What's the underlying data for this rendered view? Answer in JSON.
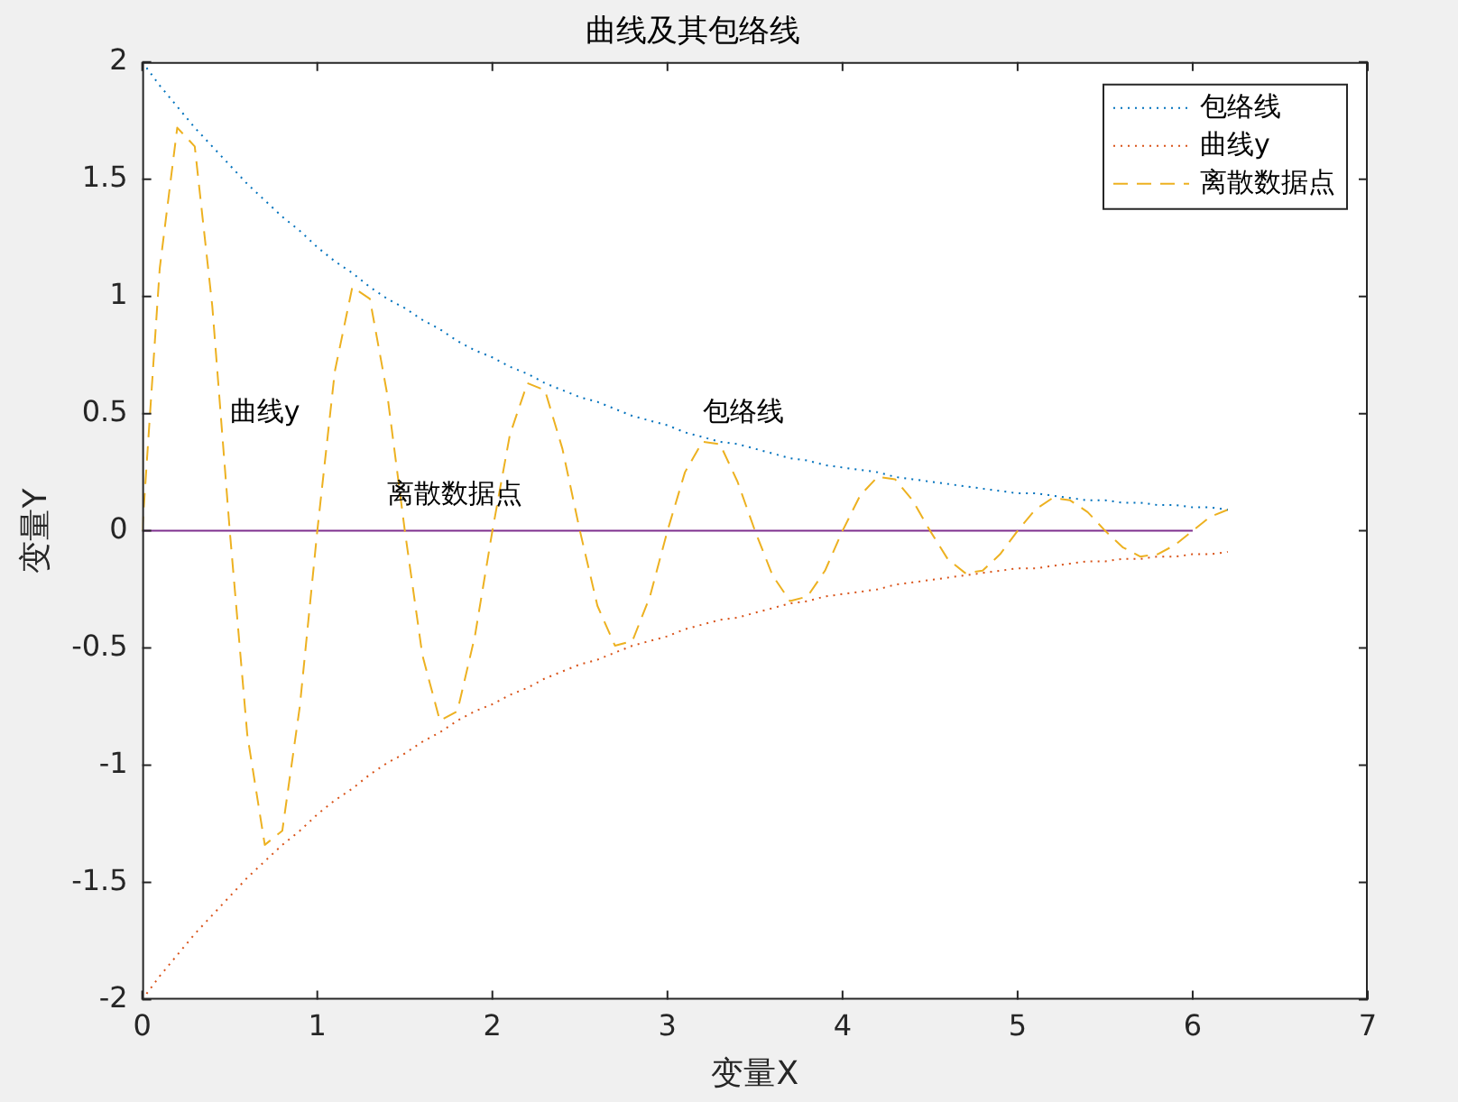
{
  "chart_data": {
    "type": "line",
    "title": "曲线及其包络线",
    "xlabel": "变量X",
    "ylabel": "变量Y",
    "x": [
      0,
      0.1,
      0.2,
      0.3,
      0.4,
      0.5,
      0.6,
      0.7,
      0.8,
      0.9,
      1,
      1.1,
      1.2,
      1.3,
      1.4,
      1.5,
      1.6,
      1.7,
      1.8,
      1.9,
      2,
      2.1,
      2.2,
      2.3,
      2.4,
      2.5,
      2.6,
      2.7,
      2.8,
      2.9,
      3,
      3.1,
      3.2,
      3.3,
      3.4,
      3.5,
      3.6,
      3.7,
      3.8,
      3.9,
      4,
      4.1,
      4.2,
      4.3,
      4.4,
      4.5,
      4.6,
      4.7,
      4.8,
      4.9,
      5,
      5.1,
      5.2,
      5.3,
      5.4,
      5.5,
      5.6,
      5.7,
      5.8,
      5.9,
      6,
      6.1,
      6.2
    ],
    "series": [
      {
        "name": "包络线",
        "color": "#0072bd",
        "line_style": "dotted",
        "values": [
          2,
          1.9,
          1.81,
          1.72,
          1.64,
          1.56,
          1.48,
          1.41,
          1.34,
          1.28,
          1.21,
          1.15,
          1.1,
          1.04,
          0.99,
          0.95,
          0.9,
          0.86,
          0.81,
          0.77,
          0.74,
          0.7,
          0.67,
          0.63,
          0.6,
          0.57,
          0.55,
          0.52,
          0.49,
          0.47,
          0.45,
          0.42,
          0.4,
          0.38,
          0.37,
          0.35,
          0.33,
          0.31,
          0.3,
          0.28,
          0.27,
          0.26,
          0.25,
          0.23,
          0.22,
          0.21,
          0.2,
          0.19,
          0.18,
          0.17,
          0.16,
          0.16,
          0.15,
          0.14,
          0.13,
          0.13,
          0.12,
          0.12,
          0.11,
          0.11,
          0.1,
          0.1,
          0.09
        ]
      },
      {
        "name": "曲线y",
        "color": "#d95319",
        "line_style": "dotted",
        "values": [
          -2,
          -1.9,
          -1.81,
          -1.72,
          -1.64,
          -1.56,
          -1.48,
          -1.41,
          -1.34,
          -1.28,
          -1.21,
          -1.15,
          -1.1,
          -1.04,
          -0.99,
          -0.95,
          -0.9,
          -0.86,
          -0.81,
          -0.77,
          -0.74,
          -0.7,
          -0.67,
          -0.63,
          -0.6,
          -0.57,
          -0.55,
          -0.52,
          -0.49,
          -0.47,
          -0.45,
          -0.42,
          -0.4,
          -0.38,
          -0.37,
          -0.35,
          -0.33,
          -0.31,
          -0.3,
          -0.28,
          -0.27,
          -0.26,
          -0.25,
          -0.23,
          -0.22,
          -0.21,
          -0.2,
          -0.19,
          -0.18,
          -0.17,
          -0.16,
          -0.16,
          -0.15,
          -0.14,
          -0.13,
          -0.13,
          -0.12,
          -0.12,
          -0.11,
          -0.11,
          -0.1,
          -0.1,
          -0.09
        ]
      },
      {
        "name": "离散数据点",
        "color": "#edb120",
        "line_style": "dashed",
        "values": [
          0,
          1.12,
          1.72,
          1.64,
          0.96,
          0,
          -0.87,
          -1.34,
          -1.28,
          -0.75,
          0,
          0.68,
          1.04,
          0.99,
          0.58,
          0,
          -0.53,
          -0.81,
          -0.77,
          -0.45,
          0,
          0.41,
          0.63,
          0.6,
          0.35,
          0,
          -0.32,
          -0.49,
          -0.47,
          -0.28,
          0,
          0.25,
          0.38,
          0.37,
          0.21,
          0,
          -0.19,
          -0.3,
          -0.28,
          -0.17,
          0,
          0.15,
          0.23,
          0.22,
          0.13,
          0,
          -0.12,
          -0.18,
          -0.17,
          -0.1,
          0,
          0.09,
          0.14,
          0.13,
          0.08,
          0,
          -0.07,
          -0.11,
          -0.1,
          -0.06,
          0,
          0.06,
          0.09
        ]
      },
      {
        "color": "#7e2f8e",
        "line_style": "solid",
        "x": [
          0,
          6
        ],
        "values": [
          0,
          0
        ]
      }
    ],
    "xlim": [
      0,
      7
    ],
    "xticks": [
      0,
      1,
      2,
      3,
      4,
      5,
      6,
      7
    ],
    "ylim": [
      -2,
      2
    ],
    "yticks": [
      -2,
      -1.5,
      -1,
      -0.5,
      0,
      0.5,
      1,
      1.5,
      2
    ],
    "grid": false,
    "legend": "top right",
    "marker": "none",
    "annotations": [
      {
        "text": "曲线y",
        "x": 0.5,
        "y": 0.5
      },
      "包络线",
      "离散数据点"
    ]
  }
}
